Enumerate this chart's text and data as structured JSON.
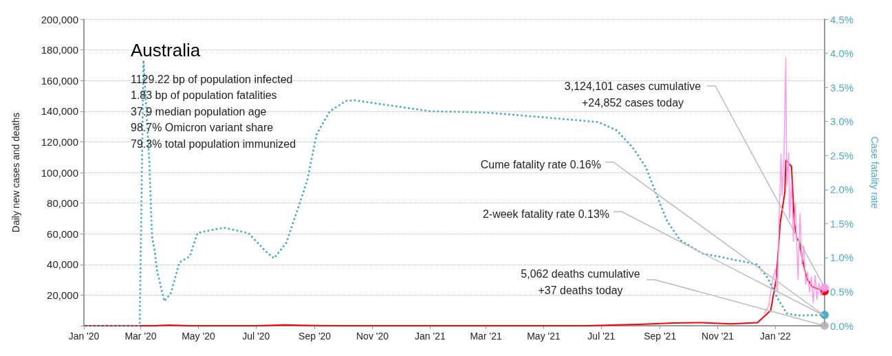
{
  "chart_data": {
    "type": "line",
    "title": "Australia",
    "ylabel": "Daily new cases and deaths",
    "y2label": "Case fatality rate",
    "xlim": [
      "2020-01-01",
      "2022-02-22"
    ],
    "xticks": [
      {
        "value": "2020-01-01",
        "label": "Jan '20"
      },
      {
        "value": "2020-03-01",
        "label": "Mar '20"
      },
      {
        "value": "2020-05-01",
        "label": "May '20"
      },
      {
        "value": "2020-07-01",
        "label": "Jul '20"
      },
      {
        "value": "2020-09-01",
        "label": "Sep '20"
      },
      {
        "value": "2020-11-01",
        "label": "Nov '20"
      },
      {
        "value": "2021-01-01",
        "label": "Jan '21"
      },
      {
        "value": "2021-03-01",
        "label": "Mar '21"
      },
      {
        "value": "2021-05-01",
        "label": "May '21"
      },
      {
        "value": "2021-07-01",
        "label": "Jul '21"
      },
      {
        "value": "2021-09-01",
        "label": "Sep '21"
      },
      {
        "value": "2021-11-01",
        "label": "Nov '21"
      },
      {
        "value": "2022-01-01",
        "label": "Jan '22"
      }
    ],
    "ylim": [
      0,
      200000
    ],
    "yticks": [
      {
        "value": 0,
        "label": null
      },
      {
        "value": 20000,
        "label": "20,000"
      },
      {
        "value": 40000,
        "label": "40,000"
      },
      {
        "value": 60000,
        "label": "60,000"
      },
      {
        "value": 80000,
        "label": "80,000"
      },
      {
        "value": 100000,
        "label": "100,000"
      },
      {
        "value": 120000,
        "label": "120,000"
      },
      {
        "value": 140000,
        "label": "140,000"
      },
      {
        "value": 160000,
        "label": "160,000"
      },
      {
        "value": 180000,
        "label": "180,000"
      },
      {
        "value": 200000,
        "label": "200,000"
      }
    ],
    "y2lim": [
      0,
      4.5
    ],
    "y2ticks": [
      {
        "value": 0,
        "label": "0.0%"
      },
      {
        "value": 0.5,
        "label": "0.5%"
      },
      {
        "value": 1,
        "label": "1.0%"
      },
      {
        "value": 1.5,
        "label": "1.5%"
      },
      {
        "value": 2,
        "label": "2.0%"
      },
      {
        "value": 2.5,
        "label": "2.5%"
      },
      {
        "value": 3,
        "label": "3.0%"
      },
      {
        "value": 3.5,
        "label": "3.5%"
      },
      {
        "value": 4,
        "label": "4.0%"
      },
      {
        "value": 4.5,
        "label": "4.5%"
      }
    ],
    "grid": "y",
    "series": [
      {
        "color": "#ff99ee",
        "x": [
          "2021-12-20",
          "2021-12-25",
          "2021-12-29",
          "2022-01-01",
          "2022-01-03",
          "2022-01-05",
          "2022-01-07",
          "2022-01-08",
          "2022-01-10",
          "2022-01-12",
          "2022-01-13",
          "2022-01-15",
          "2022-01-16",
          "2022-01-18",
          "2022-01-20",
          "2022-01-22",
          "2022-01-24",
          "2022-01-25",
          "2022-01-27",
          "2022-01-29",
          "2022-01-31",
          "2022-02-02",
          "2022-02-04",
          "2022-02-06",
          "2022-02-08",
          "2022-02-10",
          "2022-02-12",
          "2022-02-14",
          "2022-02-16",
          "2022-02-18",
          "2022-02-20",
          "2022-02-22"
        ],
        "values": [
          8000,
          13000,
          30000,
          37000,
          22000,
          72000,
          112000,
          85000,
          110000,
          175000,
          92000,
          113000,
          70000,
          95000,
          55000,
          80000,
          45000,
          30000,
          73000,
          40000,
          52000,
          27000,
          35000,
          22000,
          32000,
          15000,
          33000,
          17000,
          28000,
          20000,
          22000,
          24852
        ]
      },
      {
        "color": "#ff0000",
        "x": [
          "2020-01-01",
          "2020-03-15",
          "2020-04-01",
          "2020-04-20",
          "2020-07-01",
          "2020-08-01",
          "2020-09-01",
          "2020-10-01",
          "2021-06-15",
          "2021-08-15",
          "2021-09-15",
          "2021-10-15",
          "2021-11-15",
          "2021-12-13",
          "2021-12-27",
          "2022-01-02",
          "2022-01-06",
          "2022-01-11",
          "2022-01-12",
          "2022-01-18",
          "2022-01-21",
          "2022-01-24",
          "2022-01-26",
          "2022-01-29",
          "2022-02-03",
          "2022-02-09",
          "2022-02-22"
        ],
        "values": [
          0,
          0,
          400,
          0,
          0,
          600,
          100,
          0,
          0,
          1000,
          1800,
          2000,
          1200,
          2000,
          10000,
          31000,
          67000,
          87000,
          108000,
          104000,
          67000,
          56000,
          56000,
          45000,
          31000,
          25500,
          22500
        ]
      },
      {
        "axis": "y2",
        "color": "#4aaec8",
        "line_style": "dotted",
        "x": [
          "2020-01-01",
          "2020-02-29",
          "2020-03-04",
          "2020-03-10",
          "2020-03-13",
          "2020-03-16",
          "2020-03-18",
          "2020-03-26",
          "2020-04-02",
          "2020-04-11",
          "2020-04-22",
          "2020-04-30",
          "2020-05-13",
          "2020-05-28",
          "2020-06-23",
          "2020-07-10",
          "2020-07-20",
          "2020-08-02",
          "2020-08-13",
          "2020-08-24",
          "2020-09-03",
          "2020-09-17",
          "2020-10-04",
          "2020-10-13",
          "2021-01-01",
          "2021-03-01",
          "2021-05-01",
          "2021-06-28",
          "2021-07-17",
          "2021-08-03",
          "2021-08-17",
          "2021-08-29",
          "2021-09-08",
          "2021-09-22",
          "2021-10-16",
          "2021-11-04",
          "2021-12-13",
          "2021-12-24",
          "2022-01-03",
          "2022-01-13",
          "2022-01-25",
          "2022-02-22"
        ],
        "values": [
          0,
          0,
          3.9,
          2.45,
          1.31,
          1.09,
          0.83,
          0.36,
          0.48,
          0.93,
          1.02,
          1.36,
          1.4,
          1.44,
          1.36,
          1.11,
          0.99,
          1.22,
          1.67,
          2.13,
          2.81,
          3.15,
          3.3,
          3.31,
          3.15,
          3.13,
          3.06,
          2.99,
          2.87,
          2.62,
          2.33,
          1.9,
          1.55,
          1.26,
          1.06,
          1.01,
          0.9,
          0.7,
          0.41,
          0.18,
          0.15,
          0.16
        ]
      },
      {
        "type": "scatter",
        "color": "#aaaaaa",
        "x": [
          "2022-02-22"
        ],
        "values": [
          37
        ]
      }
    ],
    "annotations": [
      "1129.22 bp of population infected",
      "1.83 bp of population fatalities",
      "37.9 median population age",
      "98.7% Omicron variant share",
      "79.3% total population immunized",
      {
        "text": "3,124,101 cases cumulative\n+24,852 cases today",
        "x": "2022-02-22",
        "y": 24852
      },
      {
        "text": "Cume fatality rate 0.16%",
        "x": "2022-02-22",
        "y": 6500
      },
      {
        "text": "2-week fatality rate 0.13%",
        "x": "2022-02-22",
        "y": 6500
      },
      {
        "text": "5,062 deaths cumulative\n+37 deaths today",
        "x": "2022-02-22",
        "y": 37
      }
    ]
  }
}
